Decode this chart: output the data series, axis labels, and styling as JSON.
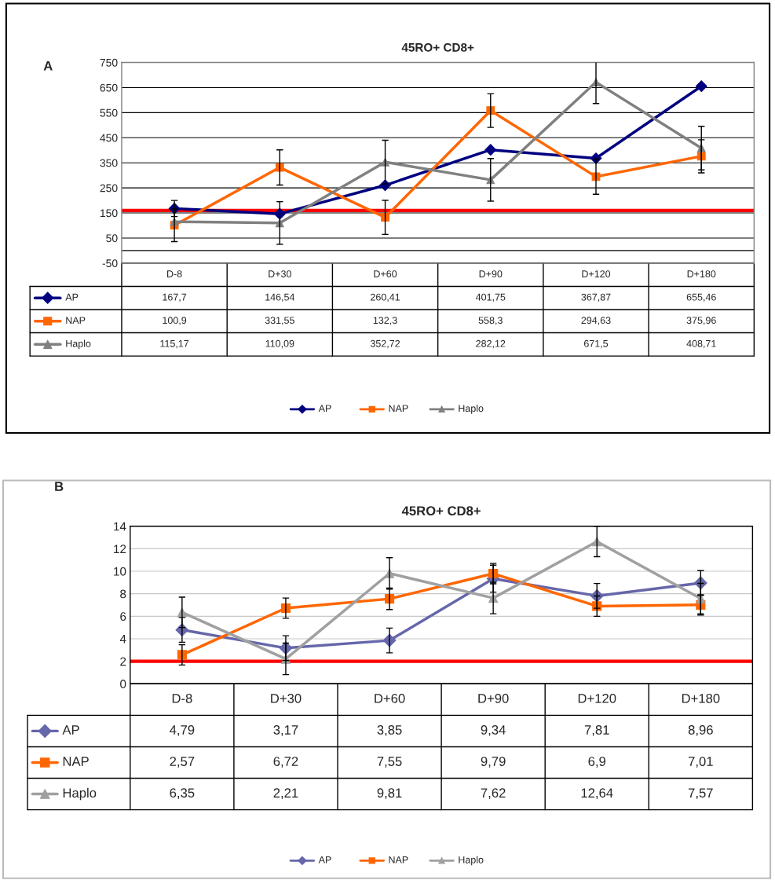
{
  "chart_data": [
    {
      "type": "line",
      "title": "45RO+ CD8+",
      "annotations": [
        "A"
      ],
      "categories": [
        "D-8",
        "D+30",
        "D+60",
        "D+90",
        "D+120",
        "D+180"
      ],
      "series": [
        {
          "name": "AP",
          "color": "#000080",
          "marker": "diamond",
          "values": [
            167.7,
            146.54,
            260.41,
            401.75,
            367.87,
            655.46
          ],
          "value_labels": [
            "167,7",
            "146,54",
            "260,41",
            "401,75",
            "367,87",
            "655,46"
          ],
          "errors": [
            32,
            null,
            null,
            null,
            null,
            null
          ]
        },
        {
          "name": "NAP",
          "color": "#ff6600",
          "marker": "square",
          "values": [
            100.9,
            331.55,
            132.3,
            558.3,
            294.63,
            375.96
          ],
          "value_labels": [
            "100,9",
            "331,55",
            "132,3",
            "558,3",
            "294,63",
            "375,96"
          ],
          "errors": [
            65,
            70,
            68,
            67,
            70,
            66
          ]
        },
        {
          "name": "Haplo",
          "color": "#808080",
          "marker": "triangle",
          "values": [
            115.17,
            110.09,
            352.72,
            282.12,
            671.5,
            408.71
          ],
          "value_labels": [
            "115,17",
            "110,09",
            "352,72",
            "282,12",
            "671,5",
            "408,71"
          ],
          "errors": [
            null,
            85,
            87,
            85,
            85,
            87
          ]
        }
      ],
      "ylim": [
        -50,
        750
      ],
      "yticks": [
        -50,
        50,
        150,
        250,
        350,
        450,
        550,
        650,
        750
      ],
      "grid": "y",
      "tick_labels": "y",
      "legend": "bottom",
      "ref_lines": [
        {
          "axis": "y",
          "value": 160,
          "color": "#ff0000"
        },
        {
          "axis": "y",
          "value": 0,
          "color": "#000000"
        }
      ]
    },
    {
      "type": "line",
      "title": "45RO+ CD8+",
      "annotations": [
        "B"
      ],
      "categories": [
        "D-8",
        "D+30",
        "D+60",
        "D+90",
        "D+120",
        "D+180"
      ],
      "series": [
        {
          "name": "AP",
          "color": "#6666aa",
          "marker": "diamond",
          "values": [
            4.79,
            3.17,
            3.85,
            9.34,
            7.81,
            8.96
          ],
          "value_labels": [
            "4,79",
            "3,17",
            "3,85",
            "9,34",
            "7,81",
            "8,96"
          ],
          "errors": [
            1.1,
            1.1,
            1.1,
            1.2,
            1.1,
            1.1
          ]
        },
        {
          "name": "NAP",
          "color": "#ff6600",
          "marker": "square",
          "values": [
            2.57,
            6.72,
            7.55,
            9.79,
            6.9,
            7.01
          ],
          "value_labels": [
            "2,57",
            "6,72",
            "7,55",
            "9,79",
            "6,9",
            "7,01"
          ],
          "errors": [
            0.9,
            0.9,
            0.95,
            0.9,
            0.9,
            0.9
          ]
        },
        {
          "name": "Haplo",
          "color": "#a0a0a0",
          "marker": "triangle",
          "values": [
            6.35,
            2.21,
            9.81,
            7.62,
            12.64,
            7.57
          ],
          "value_labels": [
            "6,35",
            "2,21",
            "9,81",
            "7,62",
            "12,64",
            "7,57"
          ],
          "errors": [
            1.35,
            1.4,
            1.4,
            1.4,
            1.35,
            1.35
          ]
        }
      ],
      "ylim": [
        0,
        14
      ],
      "yticks": [
        0,
        2,
        4,
        6,
        8,
        10,
        12,
        14
      ],
      "grid": "y",
      "tick_labels": "y",
      "legend": "bottom",
      "ref_lines": [
        {
          "axis": "y",
          "value": 2,
          "color": "#ff0000"
        }
      ]
    }
  ]
}
